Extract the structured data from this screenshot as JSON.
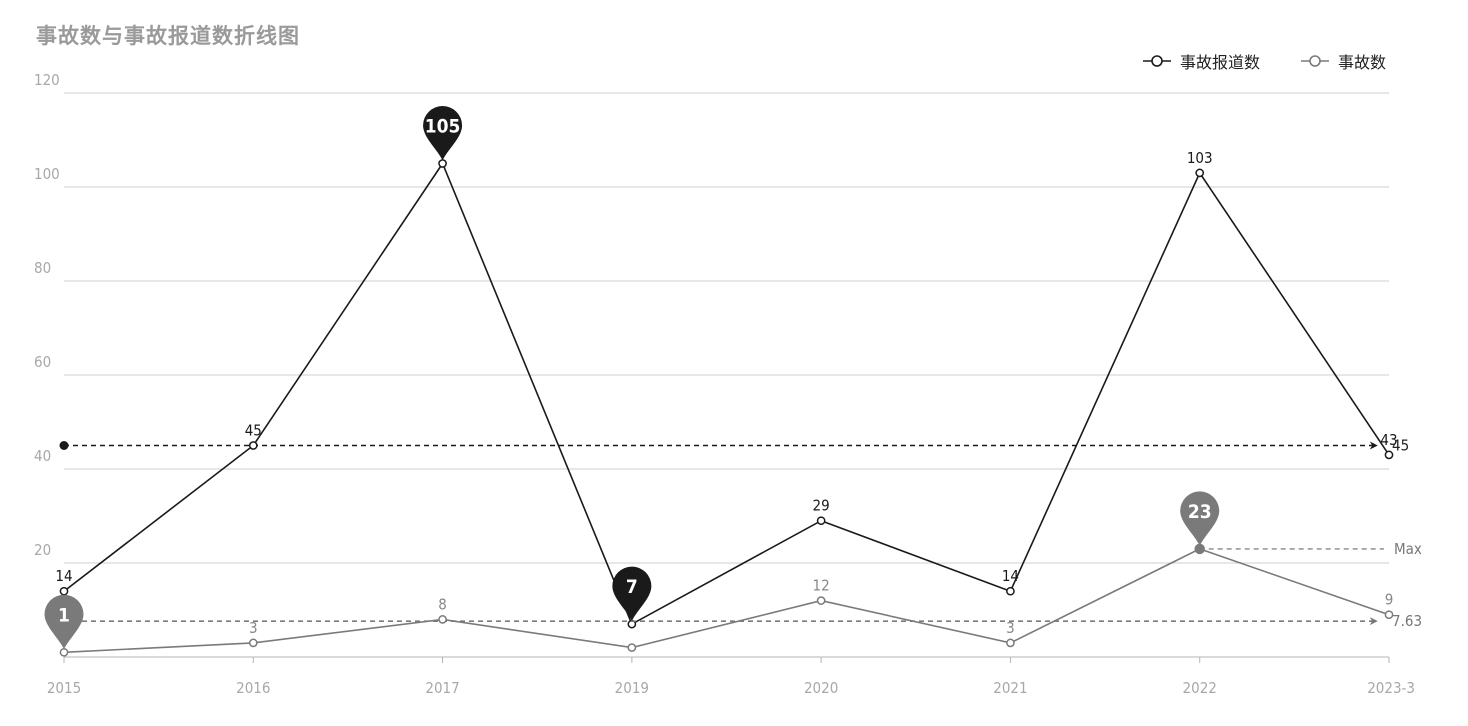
{
  "chart_data": {
    "type": "line",
    "title": "事故数与事故报道数折线图",
    "categories": [
      "2015",
      "2016",
      "2017",
      "2019",
      "2020",
      "2021",
      "2022",
      "2023-3"
    ],
    "ylim": [
      0,
      120
    ],
    "yticks": [
      20,
      40,
      60,
      80,
      100,
      120
    ],
    "grid": true,
    "legend_position": "top-right",
    "series": [
      {
        "name": "事故报道数",
        "values": [
          14,
          45,
          105,
          7,
          29,
          14,
          103,
          43
        ],
        "color": "#1a1a1a",
        "data_labels": [
          "14",
          "45",
          "",
          "",
          "29",
          "14",
          "103",
          "43"
        ],
        "markpoints": [
          {
            "index": 2,
            "label": "105"
          },
          {
            "index": 3,
            "label": "7"
          }
        ],
        "markline": {
          "value": 45,
          "label": "45"
        }
      },
      {
        "name": "事故数",
        "values": [
          1,
          3,
          8,
          2,
          12,
          3,
          23,
          9
        ],
        "color": "#7a7a7a",
        "data_labels": [
          "",
          "3",
          "8",
          "",
          "12",
          "3",
          "",
          "9"
        ],
        "markpoints": [
          {
            "index": 0,
            "label": "1"
          },
          {
            "index": 6,
            "label": "23"
          }
        ],
        "markline": {
          "value": 7.63,
          "label": "7.63"
        },
        "max_line": {
          "value": 23,
          "label": "Max"
        }
      }
    ]
  }
}
